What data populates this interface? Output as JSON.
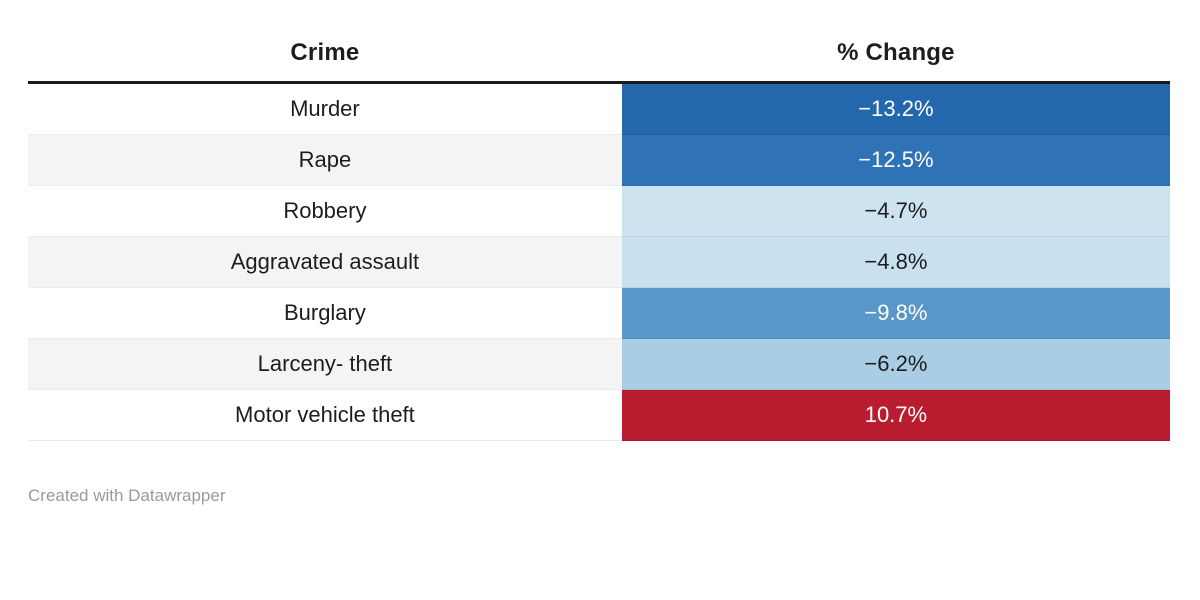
{
  "table": {
    "columns": [
      {
        "label": "Crime"
      },
      {
        "label": "% Change"
      }
    ],
    "rows": [
      {
        "crime": "Murder",
        "change": "−13.2%",
        "value": -13.2,
        "label_bg": "#ffffff",
        "cell_bg": "#2367ac",
        "cell_text": "#ffffff"
      },
      {
        "crime": "Rape",
        "change": "−12.5%",
        "value": -12.5,
        "label_bg": "#f4f4f4",
        "cell_bg": "#2f73b6",
        "cell_text": "#ffffff"
      },
      {
        "crime": "Robbery",
        "change": "−4.7%",
        "value": -4.7,
        "label_bg": "#ffffff",
        "cell_bg": "#cde3f0",
        "cell_text": "#1d1d1d"
      },
      {
        "crime": "Aggravated assault",
        "change": "−4.8%",
        "value": -4.8,
        "label_bg": "#f4f4f4",
        "cell_bg": "#c9e0ee",
        "cell_text": "#1d1d1d"
      },
      {
        "crime": "Burglary",
        "change": "−9.8%",
        "value": -9.8,
        "label_bg": "#ffffff",
        "cell_bg": "#5997c9",
        "cell_text": "#ffffff"
      },
      {
        "crime": "Larceny- theft",
        "change": "−6.2%",
        "value": -6.2,
        "label_bg": "#f4f4f4",
        "cell_bg": "#a8cde5",
        "cell_text": "#1d1d1d"
      },
      {
        "crime": "Motor vehicle theft",
        "change": "10.7%",
        "value": 10.7,
        "label_bg": "#ffffff",
        "cell_bg": "#b81c2e",
        "cell_text": "#ffffff"
      }
    ],
    "header_border_color": "#1a1a1a",
    "stripe_color": "#f4f4f4"
  },
  "footer": {
    "attribution": "Created with Datawrapper"
  },
  "chart_data": {
    "type": "table",
    "title": "",
    "columns": [
      "Crime",
      "% Change"
    ],
    "categories": [
      "Murder",
      "Rape",
      "Robbery",
      "Aggravated assault",
      "Burglary",
      "Larceny- theft",
      "Motor vehicle theft"
    ],
    "values": [
      -13.2,
      -12.5,
      -4.7,
      -4.8,
      -9.8,
      -6.2,
      10.7
    ],
    "value_unit": "percent",
    "cell_colors": [
      "#2367ac",
      "#2f73b6",
      "#cde3f0",
      "#c9e0ee",
      "#5997c9",
      "#a8cde5",
      "#b81c2e"
    ],
    "legend_position": "none",
    "grid": false
  }
}
